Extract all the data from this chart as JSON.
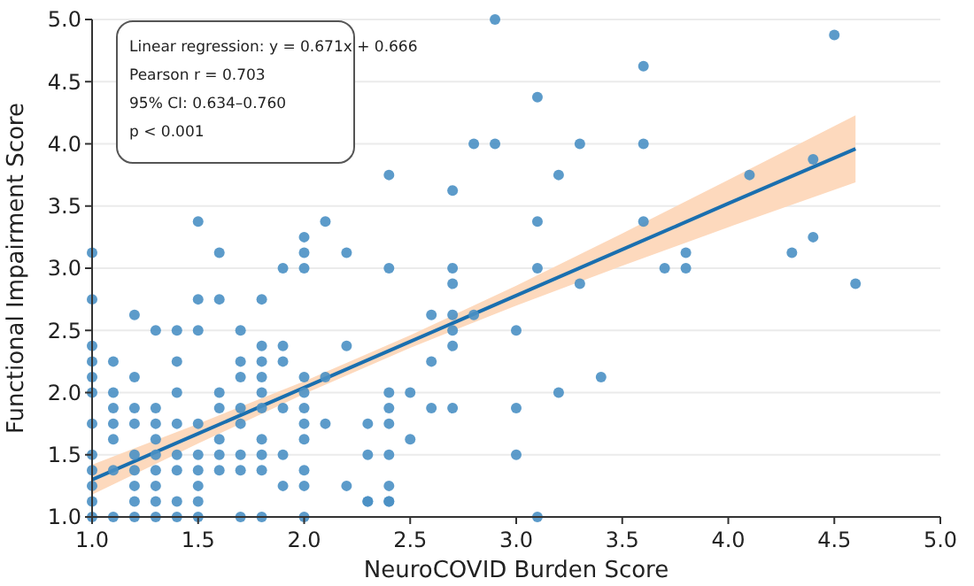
{
  "chart_data": {
    "type": "scatter",
    "xlabel": "NeuroCOVID Burden Score",
    "ylabel": "Functional Impairment Score",
    "xlim": [
      1,
      5
    ],
    "ylim": [
      1,
      5
    ],
    "xticks": [
      {
        "value": 1,
        "label": "1.0"
      },
      {
        "value": 1.5,
        "label": "1.5"
      },
      {
        "value": 2,
        "label": "2.0"
      },
      {
        "value": 2.5,
        "label": "2.5"
      },
      {
        "value": 3,
        "label": "3.0"
      },
      {
        "value": 3.5,
        "label": "3.5"
      },
      {
        "value": 4,
        "label": "4.0"
      },
      {
        "value": 4.5,
        "label": "4.5"
      },
      {
        "value": 5,
        "label": "5.0"
      }
    ],
    "yticks": [
      {
        "value": 1,
        "label": "1.0"
      },
      {
        "value": 1.5,
        "label": "1.5"
      },
      {
        "value": 2,
        "label": "2.0"
      },
      {
        "value": 2.5,
        "label": "2.5"
      },
      {
        "value": 3,
        "label": "3.0"
      },
      {
        "value": 3.5,
        "label": "3.5"
      },
      {
        "value": 4,
        "label": "4.0"
      },
      {
        "value": 4.5,
        "label": "4.5"
      },
      {
        "value": 5,
        "label": "5.0"
      }
    ],
    "grid": "y",
    "marker": "circle",
    "annotations": [
      "Linear regression: y = 0.671x + 0.666",
      "Pearson r = 0.703",
      "95% CI: 0.634–0.760",
      "p < 0.001"
    ],
    "series": [
      {
        "color": "#4a90c4",
        "x": [
          1,
          1,
          1,
          1,
          1,
          1,
          1,
          1,
          1,
          1,
          1,
          1,
          1.1,
          1.1,
          1.1,
          1.1,
          1.1,
          1.1,
          1.1,
          1.2,
          1.2,
          1.2,
          1.2,
          1.2,
          1.2,
          1.2,
          1.2,
          1.2,
          1.3,
          1.3,
          1.3,
          1.3,
          1.3,
          1.3,
          1.3,
          1.3,
          1.3,
          1.4,
          1.4,
          1.4,
          1.4,
          1.4,
          1.4,
          1.4,
          1.4,
          1.5,
          1.5,
          1.5,
          1.5,
          1.5,
          1.5,
          1.5,
          1.5,
          1.5,
          1.6,
          1.6,
          1.6,
          1.6,
          1.6,
          1.6,
          1.6,
          1.7,
          1.7,
          1.7,
          1.7,
          1.7,
          1.7,
          1.7,
          1.7,
          1.8,
          1.8,
          1.8,
          1.8,
          1.8,
          1.8,
          1.8,
          1.8,
          1.8,
          1.8,
          1.9,
          1.9,
          1.9,
          1.9,
          1.9,
          1.9,
          2,
          2,
          2,
          2,
          2,
          2,
          2,
          2,
          2,
          2,
          2,
          2.1,
          2.1,
          2.1,
          2.2,
          2.2,
          2.2,
          2.3,
          2.3,
          2.3,
          2.3,
          2.4,
          2.4,
          2.4,
          2.4,
          2.4,
          2.4,
          2.4,
          2.4,
          2.4,
          2.5,
          2.5,
          2.6,
          2.6,
          2.6,
          2.7,
          2.7,
          2.7,
          2.7,
          2.7,
          2.7,
          2.7,
          2.8,
          2.8,
          2.9,
          2.9,
          3,
          3,
          3,
          3.1,
          3.1,
          3.1,
          3.1,
          3.2,
          3.2,
          3.3,
          3.3,
          3.4,
          3.6,
          3.6,
          3.6,
          3.7,
          3.8,
          3.8,
          4.1,
          4.3,
          4.4,
          4.4,
          4.5,
          4.6
        ],
        "values": [
          3.125,
          2.75,
          2.375,
          2.25,
          2.125,
          2,
          1.75,
          1.5,
          1.375,
          1.25,
          1.125,
          1,
          2.25,
          2,
          1.875,
          1.75,
          1.625,
          1.375,
          1,
          2.625,
          2.125,
          1.875,
          1.75,
          1.5,
          1.375,
          1.25,
          1.125,
          1,
          2.5,
          1.875,
          1.75,
          1.625,
          1.5,
          1.375,
          1.25,
          1.125,
          1,
          2.5,
          2.25,
          2,
          1.75,
          1.5,
          1.375,
          1.125,
          1,
          3.375,
          2.75,
          2.5,
          1.75,
          1.5,
          1.375,
          1.25,
          1.125,
          1,
          3.125,
          2.75,
          2,
          1.875,
          1.625,
          1.5,
          1.375,
          2.5,
          2.25,
          2.125,
          1.875,
          1.75,
          1.5,
          1.375,
          1,
          2.75,
          2.375,
          2.25,
          2.125,
          2,
          1.875,
          1.625,
          1.5,
          1.375,
          1,
          3,
          2.375,
          2.25,
          1.875,
          1.5,
          1.25,
          3.25,
          3.125,
          3,
          2.125,
          2,
          1.875,
          1.75,
          1.625,
          1.375,
          1.25,
          1,
          3.375,
          2.125,
          1.75,
          3.125,
          2.375,
          1.25,
          1.75,
          1.5,
          1.125,
          1.125,
          3.75,
          3,
          2,
          1.875,
          1.75,
          1.5,
          1.25,
          1.125,
          1.125,
          2,
          1.625,
          2.625,
          2.25,
          1.875,
          3.625,
          3,
          2.875,
          2.625,
          2.5,
          2.375,
          1.875,
          4,
          2.625,
          5,
          4,
          2.5,
          1.875,
          1.5,
          4.375,
          3.375,
          3,
          1,
          3.75,
          2,
          4,
          2.875,
          2.125,
          4.625,
          4,
          3.375,
          3,
          3.125,
          3,
          3.75,
          3.125,
          3.875,
          3.25,
          4.875,
          2.875
        ]
      },
      {
        "type": "line",
        "color": "#1a6faf",
        "marker": "none",
        "x": [
          1,
          1.5,
          2,
          2.5,
          3,
          3.5,
          4,
          4.6
        ],
        "values": [
          1.3,
          1.67,
          2.04,
          2.41,
          2.78,
          3.15,
          3.52,
          3.96
        ],
        "lower": [
          1.18,
          1.59,
          1.99,
          2.36,
          2.7,
          3.02,
          3.33,
          3.69
        ],
        "upper": [
          1.42,
          1.75,
          2.09,
          2.46,
          2.86,
          3.28,
          3.71,
          4.23
        ]
      }
    ]
  }
}
